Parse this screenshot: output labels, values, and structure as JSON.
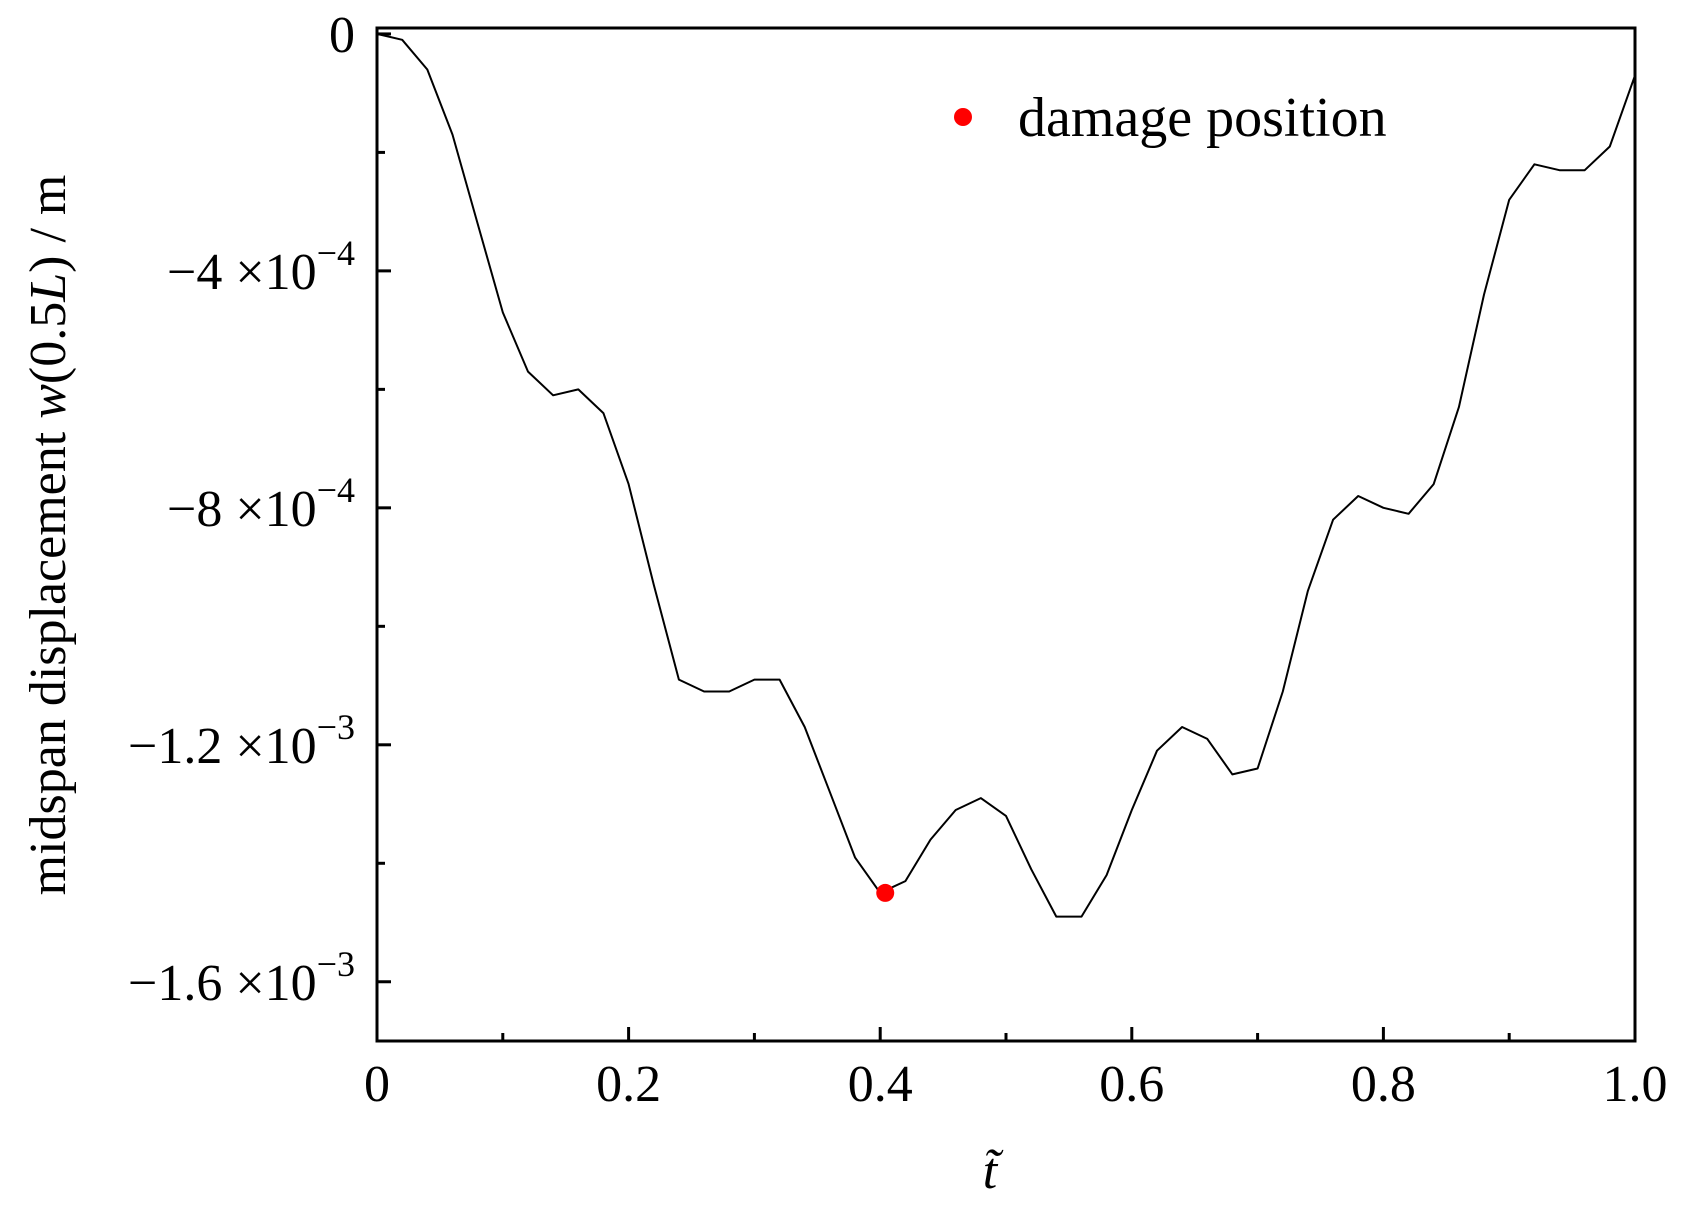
{
  "chart_data": {
    "type": "line",
    "title": "",
    "xlabel": "t̃",
    "ylabel_parts": {
      "prefix": "midspan displacement ",
      "func": "w",
      "arg_open": "(0.5",
      "arg_var": "L",
      "suffix": ") / m"
    },
    "xlim": [
      0,
      1.0
    ],
    "ylim": [
      -0.0017,
      1e-05
    ],
    "x_ticks": [
      {
        "value": 0,
        "label": "0"
      },
      {
        "value": 0.2,
        "label": "0.2"
      },
      {
        "value": 0.4,
        "label": "0.4"
      },
      {
        "value": 0.6,
        "label": "0.6"
      },
      {
        "value": 0.8,
        "label": "0.8"
      },
      {
        "value": 1.0,
        "label": "1.0"
      }
    ],
    "x_minor_ticks": [
      0.1,
      0.3,
      0.5,
      0.7,
      0.9
    ],
    "y_ticks": [
      {
        "value": 0,
        "mantissa": "0",
        "exponent": ""
      },
      {
        "value": -0.0004,
        "mantissa": "−4 ×10",
        "exponent": "−4"
      },
      {
        "value": -0.0008,
        "mantissa": "−8 ×10",
        "exponent": "−4"
      },
      {
        "value": -0.0012,
        "mantissa": "−1.2 ×10",
        "exponent": "−3"
      },
      {
        "value": -0.0016,
        "mantissa": "−1.6 ×10",
        "exponent": "−3"
      }
    ],
    "y_minor_ticks": [
      -0.0002,
      -0.0006,
      -0.001,
      -0.0014
    ],
    "grid": false,
    "legend": {
      "placement": "top-right",
      "entries": [
        {
          "label": "damage position",
          "color": "#ff0000",
          "marker": "circle"
        }
      ]
    },
    "series": [
      {
        "line_color": "#000000",
        "x": [
          0,
          0.02,
          0.04,
          0.06,
          0.08,
          0.1,
          0.12,
          0.14,
          0.16,
          0.18,
          0.2,
          0.22,
          0.24,
          0.26,
          0.28,
          0.3,
          0.32,
          0.34,
          0.36,
          0.38,
          0.4,
          0.42,
          0.44,
          0.46,
          0.48,
          0.5,
          0.52,
          0.54,
          0.56,
          0.58,
          0.6,
          0.62,
          0.64,
          0.66,
          0.68,
          0.7,
          0.72,
          0.74,
          0.76,
          0.78,
          0.8,
          0.82,
          0.84,
          0.86,
          0.88,
          0.9,
          0.92,
          0.94,
          0.96,
          0.98,
          1.0
        ],
        "y": [
          0.0,
          -1e-05,
          -6e-05,
          -0.00017,
          -0.00032,
          -0.00047,
          -0.00057,
          -0.00061,
          -0.0006,
          -0.00064,
          -0.00076,
          -0.00093,
          -0.00109,
          -0.00111,
          -0.00111,
          -0.00109,
          -0.00109,
          -0.00117,
          -0.00128,
          -0.00139,
          -0.00145,
          -0.00143,
          -0.00136,
          -0.00131,
          -0.00129,
          -0.00132,
          -0.00141,
          -0.00149,
          -0.00149,
          -0.00142,
          -0.00131,
          -0.00121,
          -0.00117,
          -0.00119,
          -0.00125,
          -0.00124,
          -0.00111,
          -0.00094,
          -0.00082,
          -0.00078,
          -0.0008,
          -0.00081,
          -0.00076,
          -0.00063,
          -0.00044,
          -0.00028,
          -0.00022,
          -0.00023,
          -0.00023,
          -0.00019,
          -7e-05
        ]
      }
    ],
    "damage_point": {
      "x": 0.404,
      "y": -0.00145,
      "color": "#ff0000"
    }
  }
}
